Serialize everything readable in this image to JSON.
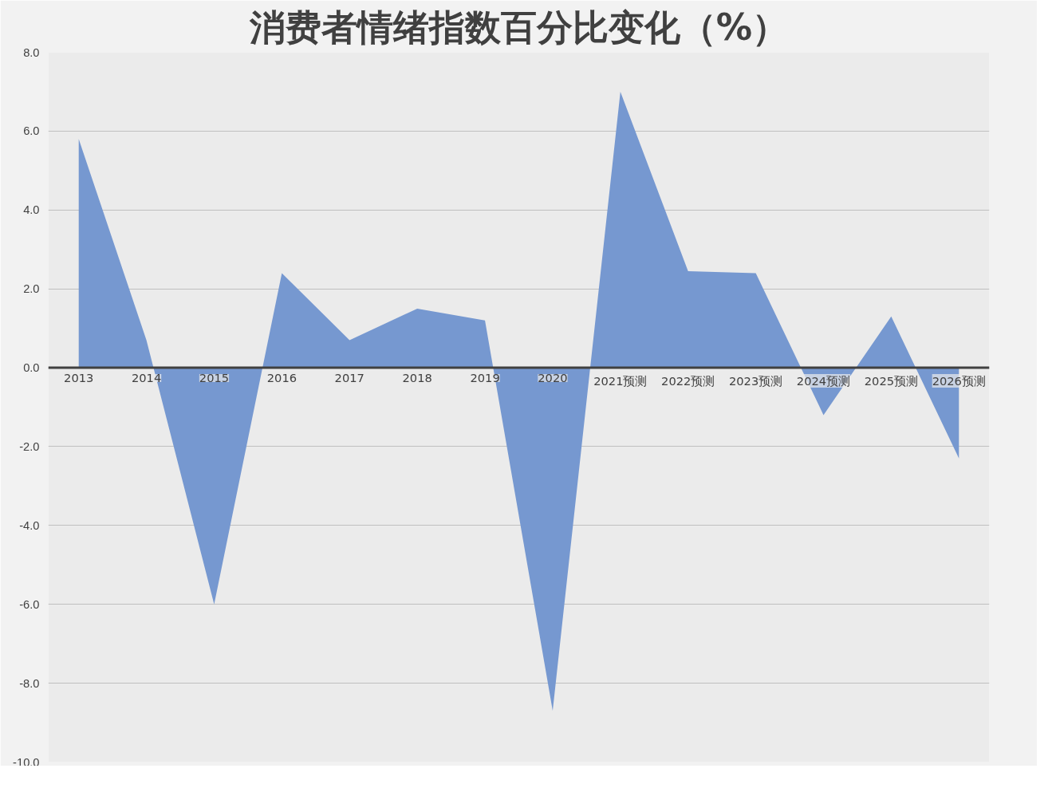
{
  "chart_data": {
    "type": "area",
    "title": "消费者情绪指数百分比变化（%）",
    "categories": [
      "2013",
      "2014",
      "2015",
      "2016",
      "2017",
      "2018",
      "2019",
      "2020",
      "2021预测",
      "2022预测",
      "2023预测",
      "2024预测",
      "2025预测",
      "2026预测"
    ],
    "series": [
      {
        "color": "#7698d0",
        "values": [
          5.8,
          0.7,
          -6.0,
          2.4,
          0.7,
          1.5,
          1.2,
          -8.7,
          7.0,
          2.45,
          2.4,
          -1.2,
          1.3,
          -2.3
        ]
      }
    ],
    "ylim": [
      -10,
      8
    ],
    "yticks": [
      {
        "value": -10,
        "label": "-10.0"
      },
      {
        "value": -8,
        "label": "-8.0"
      },
      {
        "value": -6,
        "label": "-6.0"
      },
      {
        "value": -4,
        "label": "-4.0"
      },
      {
        "value": -2,
        "label": "-2.0"
      },
      {
        "value": 0,
        "label": "0.0"
      },
      {
        "value": 2,
        "label": "2.0"
      },
      {
        "value": 4,
        "label": "4.0"
      },
      {
        "value": 6,
        "label": "6.0"
      },
      {
        "value": 8,
        "label": "8.0"
      }
    ],
    "grid": "y"
  }
}
